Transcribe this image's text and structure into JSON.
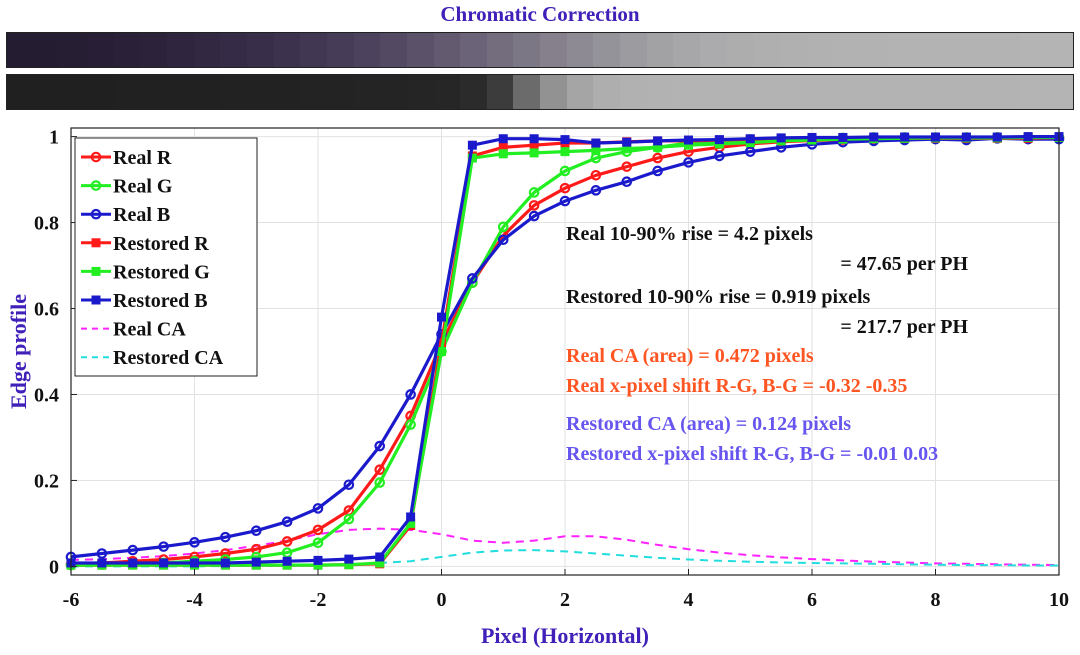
{
  "header": {
    "title": "Chromatic Correction"
  },
  "strips": {
    "top_colors": [
      "#241d31",
      "#241d31",
      "#261e33",
      "#281f36",
      "#2a2138",
      "#2c233b",
      "#2f253e",
      "#322842",
      "#352b46",
      "#392e49",
      "#3d324d",
      "#423752",
      "#473c57",
      "#4d425d",
      "#544963",
      "#5b5169",
      "#635a70",
      "#6b6377",
      "#746d7e",
      "#7c7785",
      "#85808c",
      "#8d8a93",
      "#95939a",
      "#9c9ba0",
      "#a2a2a5",
      "#a7a7a9",
      "#abaaac",
      "#adadae",
      "#afafb0",
      "#b0b0b1",
      "#b1b1b2",
      "#b2b2b2",
      "#b2b2b2",
      "#b3b3b3",
      "#b3b3b3",
      "#b3b3b3",
      "#b3b3b3",
      "#b3b3b3",
      "#b4b4b4",
      "#b4b4b4"
    ],
    "bottom_colors": [
      "#202020",
      "#202020",
      "#202020",
      "#202020",
      "#212121",
      "#212121",
      "#212121",
      "#212121",
      "#222222",
      "#222222",
      "#222222",
      "#232323",
      "#232323",
      "#242424",
      "#242424",
      "#252525",
      "#262626",
      "#2b2b2b",
      "#3c3c3c",
      "#6b6b6b",
      "#929292",
      "#a5a5a5",
      "#aeaeae",
      "#b1b1b1",
      "#b2b2b2",
      "#b3b3b3",
      "#b3b3b3",
      "#b3b3b3",
      "#b3b3b3",
      "#b3b3b3",
      "#b3b3b3",
      "#b3b3b3",
      "#b3b3b3",
      "#b3b3b3",
      "#b3b3b3",
      "#b3b3b3",
      "#b3b3b3",
      "#b3b3b3",
      "#b4b4b4",
      "#b4b4b4"
    ]
  },
  "chart_data": {
    "type": "line",
    "xlabel": "Pixel (Horizontal)",
    "ylabel": "Edge profile",
    "xlim": [
      -6,
      10
    ],
    "ylim": [
      -0.02,
      1.02
    ],
    "xticks": [
      "-6",
      "-4",
      "-2",
      "0",
      "2",
      "4",
      "6",
      "8",
      "10"
    ],
    "yticks": [
      "0",
      "0.2",
      "0.4",
      "0.6",
      "0.8",
      "1"
    ],
    "grid": true,
    "legend_position": "top-left",
    "x": [
      -6,
      -5.5,
      -5,
      -4.5,
      -4,
      -3.5,
      -3,
      -2.5,
      -2,
      -1.5,
      -1,
      -0.5,
      0,
      0.5,
      1,
      1.5,
      2,
      2.5,
      3,
      3.5,
      4,
      4.5,
      5,
      5.5,
      6,
      6.5,
      7,
      7.5,
      8,
      8.5,
      9,
      9.5,
      10
    ],
    "series": [
      {
        "name": "Real R",
        "color": "#ff1a1a",
        "style": "solid",
        "marker": "circle",
        "values": [
          0.005,
          0.008,
          0.012,
          0.016,
          0.022,
          0.03,
          0.04,
          0.058,
          0.085,
          0.13,
          0.225,
          0.35,
          0.52,
          0.66,
          0.77,
          0.84,
          0.88,
          0.91,
          0.93,
          0.95,
          0.965,
          0.975,
          0.983,
          0.988,
          0.991,
          0.993,
          0.995,
          0.996,
          0.997,
          0.997,
          0.998,
          0.998,
          0.998
        ]
      },
      {
        "name": "Real G",
        "color": "#22ee22",
        "style": "solid",
        "marker": "circle",
        "values": [
          0.003,
          0.004,
          0.006,
          0.008,
          0.012,
          0.016,
          0.022,
          0.032,
          0.055,
          0.11,
          0.195,
          0.33,
          0.5,
          0.66,
          0.79,
          0.87,
          0.92,
          0.95,
          0.965,
          0.975,
          0.985,
          0.99,
          0.993,
          0.995,
          0.996,
          0.997,
          0.998,
          0.998,
          0.998,
          0.998,
          0.998,
          0.998,
          0.998
        ]
      },
      {
        "name": "Real B",
        "color": "#1a1acc",
        "style": "solid",
        "marker": "circle",
        "values": [
          0.022,
          0.03,
          0.038,
          0.046,
          0.056,
          0.068,
          0.083,
          0.104,
          0.135,
          0.19,
          0.28,
          0.4,
          0.54,
          0.67,
          0.76,
          0.815,
          0.85,
          0.875,
          0.895,
          0.92,
          0.94,
          0.955,
          0.965,
          0.975,
          0.982,
          0.987,
          0.99,
          0.992,
          0.994,
          0.992,
          0.996,
          0.994,
          0.994
        ]
      },
      {
        "name": "Restored R",
        "color": "#ff1a1a",
        "style": "solid",
        "marker": "square",
        "values": [
          0.003,
          0.003,
          0.003,
          0.003,
          0.003,
          0.003,
          0.003,
          0.003,
          0.003,
          0.004,
          0.006,
          0.095,
          0.52,
          0.955,
          0.975,
          0.98,
          0.985,
          0.985,
          0.988,
          0.99,
          0.99,
          0.992,
          0.994,
          0.996,
          0.996,
          0.996,
          0.996,
          0.996,
          0.996,
          0.996,
          0.996,
          0.996,
          0.998
        ]
      },
      {
        "name": "Restored G",
        "color": "#22ee22",
        "style": "solid",
        "marker": "square",
        "values": [
          0.003,
          0.003,
          0.003,
          0.003,
          0.003,
          0.003,
          0.003,
          0.003,
          0.003,
          0.004,
          0.008,
          0.1,
          0.5,
          0.95,
          0.96,
          0.962,
          0.965,
          0.968,
          0.972,
          0.975,
          0.98,
          0.983,
          0.986,
          0.99,
          0.992,
          0.994,
          0.995,
          0.996,
          0.997,
          0.997,
          0.997,
          0.998,
          0.998
        ]
      },
      {
        "name": "Restored B",
        "color": "#1a1acc",
        "style": "solid",
        "marker": "square",
        "values": [
          0.008,
          0.008,
          0.008,
          0.008,
          0.008,
          0.008,
          0.01,
          0.012,
          0.014,
          0.017,
          0.022,
          0.115,
          0.58,
          0.98,
          0.995,
          0.995,
          0.993,
          0.985,
          0.987,
          0.99,
          0.992,
          0.993,
          0.995,
          0.997,
          0.998,
          0.998,
          0.999,
          0.999,
          0.999,
          0.999,
          0.999,
          1.0,
          1.0
        ]
      },
      {
        "name": "Real CA",
        "color": "#ff22ff",
        "style": "dashed",
        "marker": "none",
        "values": [
          0.015,
          0.017,
          0.02,
          0.024,
          0.03,
          0.038,
          0.048,
          0.06,
          0.075,
          0.085,
          0.088,
          0.085,
          0.075,
          0.06,
          0.055,
          0.06,
          0.07,
          0.07,
          0.062,
          0.05,
          0.04,
          0.032,
          0.026,
          0.021,
          0.017,
          0.014,
          0.011,
          0.009,
          0.007,
          0.006,
          0.005,
          0.004,
          0.003
        ]
      },
      {
        "name": "Restored CA",
        "color": "#22dddd",
        "style": "dashed",
        "marker": "none",
        "values": [
          0.0,
          0.0,
          0.0,
          0.0,
          0.0,
          0.001,
          0.001,
          0.002,
          0.003,
          0.005,
          0.008,
          0.012,
          0.022,
          0.032,
          0.037,
          0.038,
          0.035,
          0.03,
          0.025,
          0.02,
          0.016,
          0.013,
          0.011,
          0.009,
          0.008,
          0.007,
          0.006,
          0.005,
          0.004,
          0.003,
          0.003,
          0.002,
          0.002
        ]
      }
    ],
    "annotations": [
      {
        "text": "Real 10-90% rise = 4.2 pixels",
        "color": "#111111",
        "anchor": "start"
      },
      {
        "text": "= 47.65 per PH",
        "color": "#111111",
        "anchor": "end"
      },
      {
        "text": "Restored 10-90% rise = 0.919 pixels",
        "color": "#111111",
        "anchor": "start"
      },
      {
        "text": "= 217.7 per PH",
        "color": "#111111",
        "anchor": "end"
      },
      {
        "text": "Real CA (area) = 0.472 pixels",
        "color": "#ff5522",
        "anchor": "start"
      },
      {
        "text": "Real x-pixel shift R-G, B-G = -0.32 -0.35",
        "color": "#ff5522",
        "anchor": "start"
      },
      {
        "text": "Restored CA (area) = 0.124 pixels",
        "color": "#6655ee",
        "anchor": "start"
      },
      {
        "text": "Restored x-pixel shift R-G, B-G = -0.01 0.03",
        "color": "#6655ee",
        "anchor": "start"
      }
    ]
  }
}
